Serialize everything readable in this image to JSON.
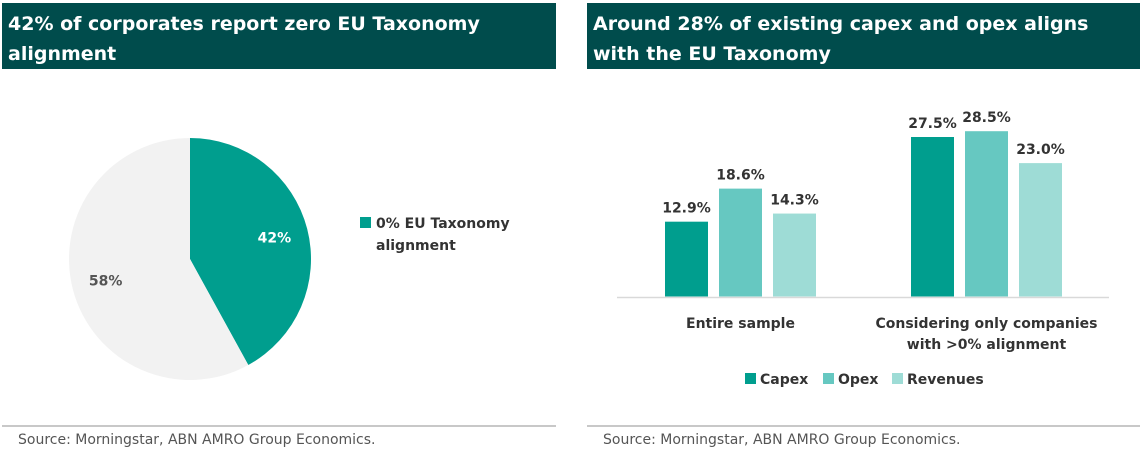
{
  "left": {
    "title": "42% of corporates report zero EU Taxonomy alignment",
    "source": "Source: Morningstar, ABN AMRO Group Economics."
  },
  "right": {
    "title": "Around 28% of existing capex and opex aligns with the EU Taxonomy",
    "source": "Source: Morningstar, ABN AMRO Group Economics."
  },
  "chart_data": [
    {
      "type": "pie",
      "title": "42% of corporates report zero EU Taxonomy alignment",
      "slices": [
        {
          "label": "0% EU Taxonomy alignment",
          "value": 42,
          "value_label": "42%",
          "color": "#009e8e",
          "in_legend": true
        },
        {
          "label": "",
          "value": 58,
          "value_label": "58%",
          "color": "#f2f2f2",
          "in_legend": false
        }
      ],
      "legend_placement": "right",
      "legend": [
        "0% EU Taxonomy alignment"
      ]
    },
    {
      "type": "bar",
      "title": "Around 28% of existing capex and opex aligns with the EU Taxonomy",
      "categories": [
        "Entire sample",
        "Considering only companies with >0% alignment"
      ],
      "series": [
        {
          "name": "Capex",
          "values": [
            12.9,
            27.5
          ],
          "labels": [
            "12.9%",
            "27.5%"
          ],
          "color": "#009e8e"
        },
        {
          "name": "Opex",
          "values": [
            18.6,
            28.5
          ],
          "labels": [
            "18.6%",
            "28.5%"
          ],
          "color": "#66c8c1"
        },
        {
          "name": "Revenues",
          "values": [
            14.3,
            23.0
          ],
          "labels": [
            "14.3%",
            "23.0%"
          ],
          "color": "#9edcd6"
        }
      ],
      "ylim": [
        0,
        30
      ],
      "grid": false,
      "legend_placement": "bottom"
    }
  ]
}
